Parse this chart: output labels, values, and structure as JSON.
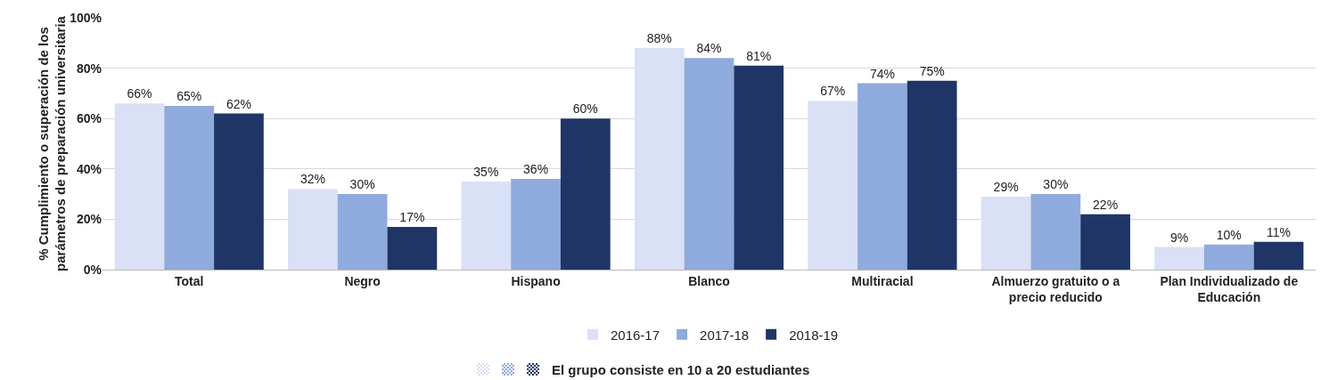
{
  "chart_data": {
    "type": "bar",
    "ylabel": "% Cumplimiento o superación de los\nparámetros de preparación universitaria",
    "categories": [
      "Total",
      "Negro",
      "Hispano",
      "Blanco",
      "Multiracial",
      "Almuerzo gratuito o a\nprecio reducido",
      "Plan Individualizado de\nEducación"
    ],
    "series": [
      {
        "name": "2016-17",
        "color": "#dae0f5",
        "values": [
          66,
          32,
          35,
          88,
          67,
          29,
          9
        ],
        "value_labels": [
          "66%",
          "32%",
          "35%",
          "88%",
          "67%",
          "29%",
          "9%"
        ]
      },
      {
        "name": "2017-18",
        "color": "#8faadc",
        "values": [
          65,
          30,
          36,
          84,
          74,
          30,
          10
        ],
        "value_labels": [
          "65%",
          "30%",
          "36%",
          "84%",
          "74%",
          "30%",
          "10%"
        ]
      },
      {
        "name": "2018-19",
        "color": "#1f3566",
        "values": [
          62,
          17,
          60,
          81,
          75,
          22,
          11
        ],
        "value_labels": [
          "62%",
          "17%",
          "60%",
          "81%",
          "75%",
          "22%",
          "11%"
        ]
      }
    ],
    "ylim": [
      0,
      100
    ],
    "yticks": [
      {
        "value": 0,
        "label": "0%"
      },
      {
        "value": 20,
        "label": "20%"
      },
      {
        "value": 40,
        "label": "40%"
      },
      {
        "value": 60,
        "label": "60%"
      },
      {
        "value": 80,
        "label": "80%"
      },
      {
        "value": 100,
        "label": "100%"
      }
    ],
    "grid": "y",
    "legend": "bottom",
    "annotations": [
      "El grupo consiste en 10 a 20 estudiantes"
    ]
  }
}
